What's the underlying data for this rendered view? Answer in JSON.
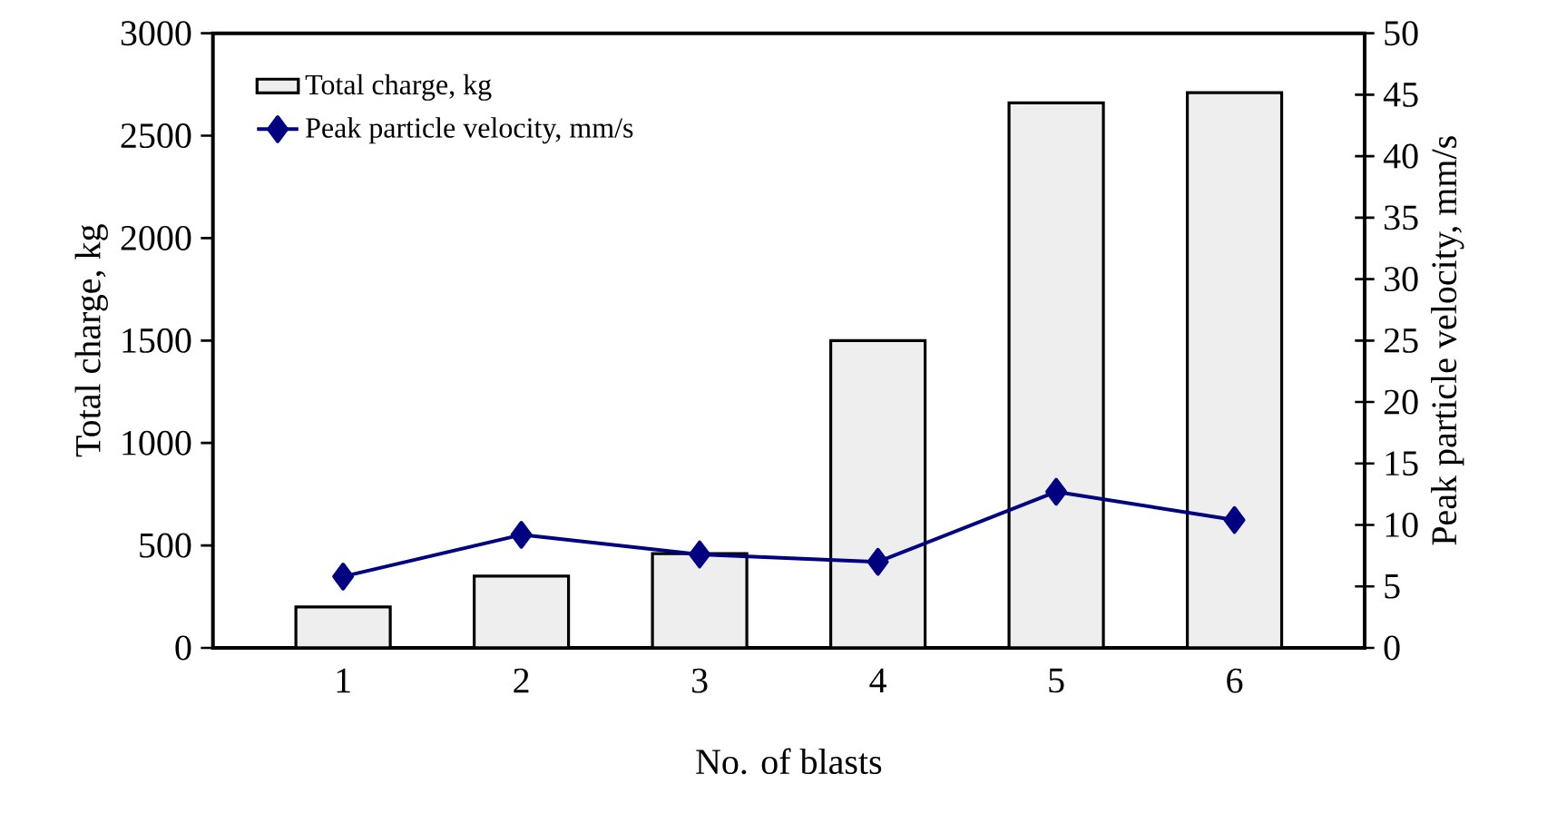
{
  "chart_data": {
    "type": "bar",
    "xlabel": "No. of blasts",
    "ylabel": "Total charge, kg",
    "y2label": "Peak particle velocity, mm/s",
    "categories": [
      "1",
      "2",
      "3",
      "4",
      "5",
      "6"
    ],
    "series": [
      {
        "name": "Total charge, kg",
        "color": "#eeeeee",
        "values": [
          200,
          350,
          460,
          1500,
          2660,
          2710
        ]
      },
      {
        "name": "Peak particle velocity, mm/s",
        "type": "line",
        "axis": "y2",
        "color": "#000080",
        "values": [
          5.8,
          9.2,
          7.6,
          7.0,
          12.7,
          10.4
        ]
      }
    ],
    "ylim": [
      0,
      3000
    ],
    "yticks": [
      0,
      500,
      1000,
      1500,
      2000,
      2500,
      3000
    ],
    "y2lim": [
      0,
      50
    ],
    "y2ticks": [
      0,
      5,
      10,
      15,
      20,
      25,
      30,
      35,
      40,
      45,
      50
    ],
    "legend": "top left",
    "marker": "diamond",
    "line_style": "solid"
  }
}
